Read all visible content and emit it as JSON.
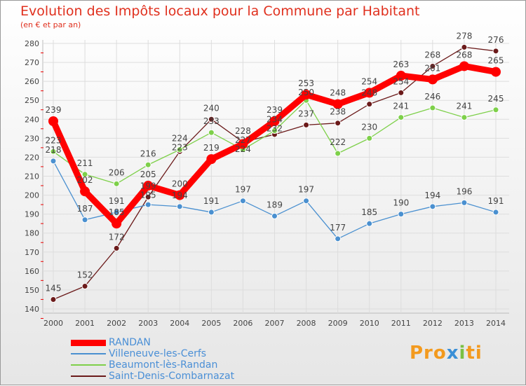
{
  "chart_data": {
    "type": "line",
    "title": "Evolution des Impôts locaux pour la Commune par Habitant",
    "subtitle": "(en € et par an)",
    "x": [
      "2000",
      "2001",
      "2002",
      "2003",
      "2004",
      "2005",
      "2006",
      "2007",
      "2008",
      "2009",
      "2010",
      "2011",
      "2012",
      "2013",
      "2014"
    ],
    "ylim": [
      140,
      280
    ],
    "yticks": [
      140,
      150,
      160,
      170,
      180,
      190,
      200,
      210,
      220,
      230,
      240,
      250,
      260,
      270,
      280
    ],
    "grid": true,
    "legend": "bottom-left",
    "series": [
      {
        "name": "RANDAN",
        "color": "#ff0000",
        "values": [
          239,
          202,
          185,
          205,
          200,
          219,
          227,
          239,
          253,
          248,
          254,
          263,
          261,
          268,
          265
        ]
      },
      {
        "name": "Villeneuve-les-Cerfs",
        "color": "#4a90d0",
        "values": [
          218,
          187,
          191,
          195,
          194,
          191,
          197,
          189,
          197,
          177,
          185,
          190,
          194,
          196,
          191
        ]
      },
      {
        "name": "Beaumont-lès-Randan",
        "color": "#7ed04a",
        "values": [
          223,
          211,
          206,
          216,
          224,
          233,
          224,
          234,
          250,
          222,
          230,
          241,
          246,
          241,
          245
        ]
      },
      {
        "name": "Saint-Denis-Combarnazat",
        "color": "#6b1a1a",
        "values": [
          145,
          152,
          172,
          199,
          223,
          240,
          228,
          232,
          237,
          238,
          248,
          254,
          268,
          278,
          276
        ]
      }
    ]
  },
  "logo": "Proxiti"
}
